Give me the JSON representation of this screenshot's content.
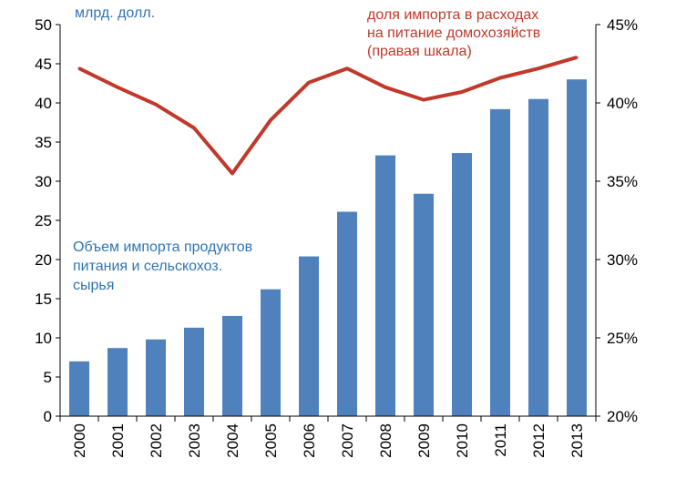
{
  "chart_data": {
    "type": "bar+line",
    "categories": [
      "2000",
      "2001",
      "2002",
      "2003",
      "2004",
      "2005",
      "2006",
      "2007",
      "2008",
      "2009",
      "2010",
      "2011",
      "2012",
      "2013"
    ],
    "series": [
      {
        "name": "Объем импорта продуктов питания и сельскохоз. сырья",
        "type": "bar",
        "axis": "left",
        "values": [
          7.0,
          8.7,
          9.8,
          11.3,
          12.8,
          16.2,
          20.4,
          26.1,
          33.3,
          28.4,
          33.6,
          39.2,
          40.5,
          43.0
        ]
      },
      {
        "name": "доля импорта в расходах на питание домохозяйств (правая шкала)",
        "type": "line",
        "axis": "right",
        "values": [
          42.2,
          41.0,
          39.9,
          38.4,
          35.5,
          38.9,
          41.3,
          42.2,
          41.0,
          40.2,
          40.7,
          41.6,
          42.2,
          42.9
        ]
      }
    ],
    "left_axis": {
      "min": 0,
      "max": 50,
      "step": 5,
      "ticks": [
        "0",
        "5",
        "10",
        "15",
        "20",
        "25",
        "30",
        "35",
        "40",
        "45",
        "50"
      ]
    },
    "right_axis": {
      "min": 20,
      "max": 45,
      "step": 5,
      "ticks": [
        "20%",
        "25%",
        "30%",
        "35%",
        "40%",
        "45%"
      ]
    },
    "annotations": {
      "left_unit": "млрд. долл.",
      "bar_label": [
        "Объем импорта продуктов",
        "питания и сельскохоз.",
        "сырья"
      ],
      "line_label": [
        "доля импорта в расходах",
        "на питание домохозяйств",
        "(правая шкала)"
      ]
    },
    "colors": {
      "bar": "#4f81bd",
      "line": "#c0392b",
      "bar_label": "#2e75b6",
      "line_label": "#c0392b",
      "axis": "#000000"
    },
    "grid": false
  }
}
